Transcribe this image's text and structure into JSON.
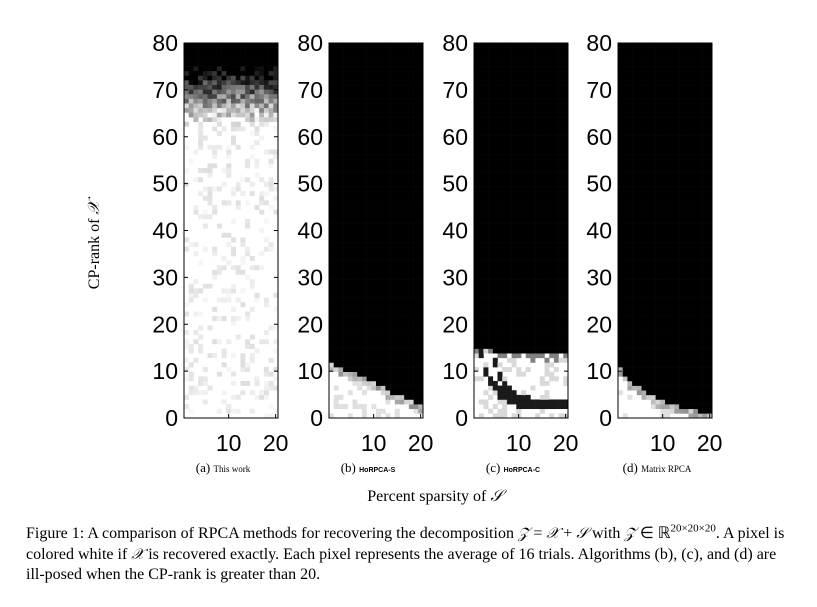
{
  "figure": {
    "xlabel_prefix": "Percent sparsity of ",
    "xlabel_symbol": "𝒮",
    "ylabel_prefix": "CP-rank of ",
    "ylabel_symbol": "𝒳",
    "panels": [
      {
        "label": "(a)",
        "name": "This work",
        "name_style": "normal"
      },
      {
        "label": "(b)",
        "name": "HoRPCA-S",
        "name_style": "caps"
      },
      {
        "label": "(c)",
        "name": "HoRPCA-C",
        "name_style": "caps"
      },
      {
        "label": "(d)",
        "name": "Matrix RPCA",
        "name_style": "normal"
      }
    ]
  },
  "chart_data": [
    {
      "type": "heatmap",
      "title": "",
      "xlabel": "",
      "ylabel": "",
      "x_ticks": [
        10,
        20
      ],
      "y_ticks": [
        0,
        10,
        20,
        30,
        40,
        50,
        60,
        70,
        80
      ],
      "xlim": [
        1,
        20
      ],
      "ylim": [
        0,
        80
      ],
      "colormap": "black = not recovered, white = recovered exactly",
      "description": "mostly white (recovered) up to CP-rank ~63, gray transition 63-76, black above ~76"
    },
    {
      "type": "heatmap",
      "title": "",
      "xlabel": "",
      "ylabel": "",
      "x_ticks": [
        10,
        20
      ],
      "y_ticks": [
        0,
        10,
        20,
        30,
        40,
        50,
        60,
        70,
        80
      ],
      "xlim": [
        1,
        20
      ],
      "ylim": [
        0,
        80
      ],
      "boundary_rank": [
        11,
        10,
        9,
        8,
        7,
        5,
        4,
        3,
        2
      ],
      "boundary_sparsity": [
        1,
        3,
        5,
        8,
        10,
        13,
        15,
        18,
        20
      ]
    },
    {
      "type": "heatmap",
      "title": "",
      "xlabel": "",
      "ylabel": "",
      "x_ticks": [
        10,
        20
      ],
      "y_ticks": [
        0,
        10,
        20,
        30,
        40,
        50,
        60,
        70,
        80
      ],
      "xlim": [
        1,
        20
      ],
      "ylim": [
        0,
        80
      ],
      "boundary_rank": [
        14,
        14,
        13,
        13,
        13,
        13
      ],
      "boundary_sparsity": [
        1,
        4,
        8,
        12,
        16,
        20
      ]
    },
    {
      "type": "heatmap",
      "title": "",
      "xlabel": "",
      "ylabel": "",
      "x_ticks": [
        10,
        20
      ],
      "y_ticks": [
        0,
        10,
        20,
        30,
        40,
        50,
        60,
        70,
        80
      ],
      "xlim": [
        1,
        20
      ],
      "ylim": [
        0,
        80
      ],
      "boundary_rank": [
        10,
        7,
        5,
        3,
        2,
        1,
        0
      ],
      "boundary_sparsity": [
        1,
        3,
        6,
        9,
        12,
        16,
        20
      ]
    }
  ],
  "caption": {
    "p1": "Figure 1: A comparison of RPCA methods for recovering the decomposition ",
    "z1": "𝒵",
    "eq": " = ",
    "x1": "𝒳",
    "plus": " + ",
    "s1": "𝒮",
    "with": " with ",
    "z2": "𝒵",
    "in": " ∈ ℝ",
    "dims": "20×20×20",
    "p2": ". A pixel is colored white if ",
    "x2": "𝒳",
    "p3": " is recovered exactly. Each pixel represents the average of 16 trials. Algorithms (b), (c), and (d) are ill-posed when the CP-rank is greater than 20."
  }
}
